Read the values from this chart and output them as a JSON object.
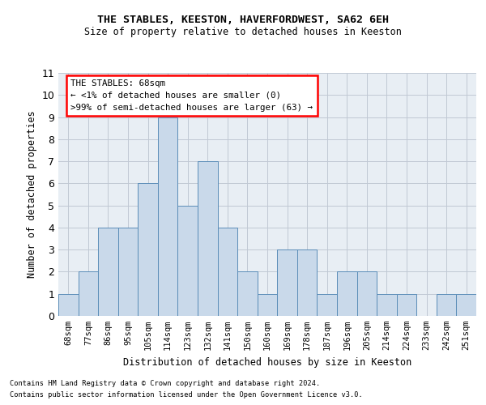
{
  "title1": "THE STABLES, KEESTON, HAVERFORDWEST, SA62 6EH",
  "title2": "Size of property relative to detached houses in Keeston",
  "xlabel": "Distribution of detached houses by size in Keeston",
  "ylabel": "Number of detached properties",
  "footnote1": "Contains HM Land Registry data © Crown copyright and database right 2024.",
  "footnote2": "Contains public sector information licensed under the Open Government Licence v3.0.",
  "annotation_line1": "THE STABLES: 68sqm",
  "annotation_line2": "← <1% of detached houses are smaller (0)",
  "annotation_line3": ">99% of semi-detached houses are larger (63) →",
  "bar_color": "#c9d9ea",
  "bar_edge_color": "#5b8db8",
  "annotation_box_color": "white",
  "annotation_box_edge": "red",
  "grid_color": "#c0c8d4",
  "bg_color": "#e8eef4",
  "categories": [
    "68sqm",
    "77sqm",
    "86sqm",
    "95sqm",
    "105sqm",
    "114sqm",
    "123sqm",
    "132sqm",
    "141sqm",
    "150sqm",
    "160sqm",
    "169sqm",
    "178sqm",
    "187sqm",
    "196sqm",
    "205sqm",
    "214sqm",
    "224sqm",
    "233sqm",
    "242sqm",
    "251sqm"
  ],
  "values": [
    1,
    2,
    4,
    4,
    6,
    9,
    5,
    7,
    4,
    2,
    1,
    3,
    3,
    1,
    2,
    2,
    1,
    1,
    0,
    1,
    1
  ],
  "ylim": [
    0,
    11
  ],
  "yticks": [
    0,
    1,
    2,
    3,
    4,
    5,
    6,
    7,
    8,
    9,
    10,
    11
  ]
}
